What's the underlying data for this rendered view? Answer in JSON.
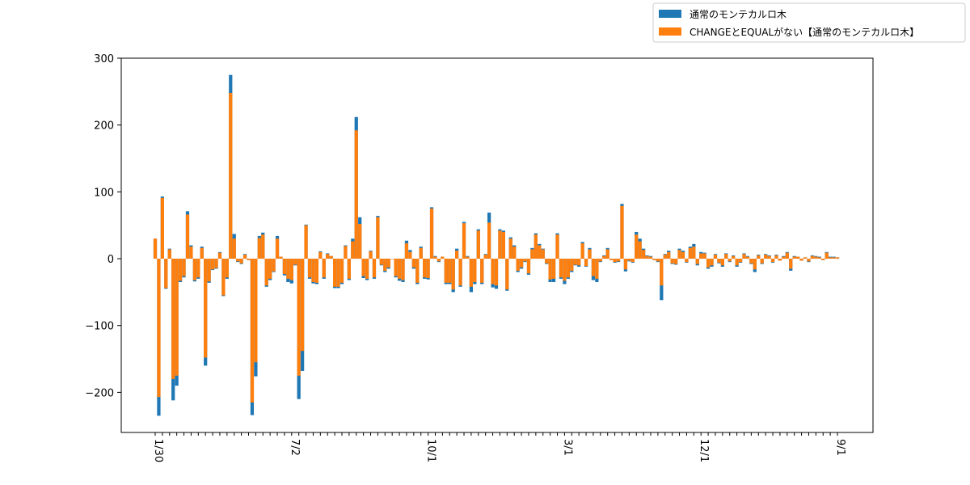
{
  "chart_data": {
    "type": "bar",
    "stacked": false,
    "title": "",
    "xlabel": "",
    "ylabel": "",
    "ylim": [
      -260,
      300
    ],
    "yticks": [
      -200,
      -100,
      0,
      100,
      200,
      300
    ],
    "ytick_labels": [
      "−200",
      "−100",
      "0",
      "100",
      "200",
      "300"
    ],
    "grid": false,
    "legend_position": "top-right",
    "colors": {
      "series1": "#1f77b4",
      "series2": "#ff7f0e"
    },
    "x_tick_labels_note_visible": [
      "1/30",
      "7/2",
      "10/1",
      "3/1",
      "12/1",
      "9/1"
    ],
    "series": [
      {
        "name": "通常のモンテカルロ木",
        "values": [
          30,
          -235,
          93,
          -45,
          15,
          -212,
          -190,
          -35,
          -28,
          71,
          20,
          -34,
          -30,
          18,
          -160,
          -36,
          -17,
          -15,
          10,
          -56,
          -30,
          275,
          37,
          -5,
          -8,
          7,
          -2,
          -234,
          -176,
          34,
          39,
          -42,
          -32,
          -20,
          34,
          3,
          -25,
          -35,
          -37,
          -10,
          -210,
          -168,
          51,
          -30,
          -37,
          -38,
          11,
          -30,
          8,
          4,
          -44,
          -44,
          -38,
          20,
          -32,
          30,
          212,
          62,
          -29,
          -32,
          12,
          -30,
          64,
          -10,
          -20,
          -15,
          0,
          -28,
          -33,
          -35,
          27,
          13,
          -15,
          -38,
          18,
          -30,
          -31,
          77,
          4,
          -5,
          3,
          -38,
          -38,
          -50,
          15,
          -42,
          55,
          4,
          -50,
          -38,
          44,
          -38,
          7,
          69,
          -43,
          -45,
          44,
          42,
          -48,
          32,
          20,
          -20,
          -15,
          -5,
          -24,
          16,
          38,
          22,
          15,
          -8,
          -35,
          -35,
          38,
          -30,
          -38,
          -30,
          -20,
          -10,
          -12,
          25,
          -12,
          16,
          -32,
          -35,
          -5,
          5,
          16,
          -2,
          -6,
          -5,
          82,
          -19,
          -4,
          -6,
          40,
          30,
          15,
          5,
          4,
          -2,
          -5,
          -62,
          7,
          12,
          -8,
          -9,
          15,
          12,
          -6,
          18,
          22,
          -10,
          10,
          9,
          -15,
          -12,
          7,
          -7,
          -12,
          8,
          -5,
          5,
          -12,
          -6,
          8,
          4,
          -8,
          -20,
          6,
          -8,
          7,
          5,
          -6,
          6,
          -3,
          4,
          10,
          -18,
          4,
          3,
          -3,
          2,
          -5,
          5,
          4,
          3,
          -2,
          10,
          3,
          3,
          2
        ]
      },
      {
        "name": "CHANGEとEQUALがない【通常のモンテカルロ木】",
        "values": [
          30,
          -207,
          91,
          -44,
          14,
          -180,
          -175,
          -33,
          -26,
          66,
          18,
          -32,
          -28,
          16,
          -148,
          -34,
          -16,
          -14,
          9,
          -55,
          -28,
          248,
          30,
          -4,
          -7,
          6,
          -2,
          -215,
          -155,
          31,
          36,
          -40,
          -30,
          -19,
          30,
          3,
          -23,
          -30,
          -32,
          -9,
          -175,
          -138,
          50,
          -28,
          -35,
          -36,
          10,
          -28,
          7,
          4,
          -42,
          -42,
          -36,
          19,
          -30,
          26,
          192,
          52,
          -26,
          -30,
          11,
          -28,
          62,
          -9,
          -18,
          -13,
          0,
          -26,
          -30,
          -32,
          23,
          10,
          -13,
          -36,
          16,
          -28,
          -29,
          75,
          3,
          -4,
          3,
          -36,
          -36,
          -46,
          12,
          -40,
          53,
          3,
          -42,
          -35,
          42,
          -36,
          6,
          54,
          -38,
          -40,
          42,
          40,
          -46,
          30,
          18,
          -18,
          -13,
          -4,
          -22,
          14,
          36,
          20,
          14,
          -7,
          -31,
          -30,
          36,
          -28,
          -33,
          -28,
          -18,
          -9,
          -10,
          23,
          -11,
          14,
          -26,
          -30,
          -4,
          4,
          14,
          -2,
          -5,
          -4,
          79,
          -16,
          -3,
          -5,
          36,
          26,
          13,
          4,
          3,
          -2,
          -4,
          -40,
          6,
          10,
          -7,
          -8,
          13,
          10,
          -5,
          16,
          18,
          -8,
          8,
          8,
          -13,
          -10,
          6,
          -6,
          -10,
          7,
          -4,
          4,
          -10,
          -5,
          7,
          3,
          -7,
          -16,
          5,
          -7,
          6,
          4,
          -5,
          5,
          -3,
          3,
          9,
          -15,
          3,
          3,
          -3,
          2,
          -4,
          4,
          3,
          2,
          -2,
          9,
          2,
          2,
          2
        ]
      }
    ]
  }
}
